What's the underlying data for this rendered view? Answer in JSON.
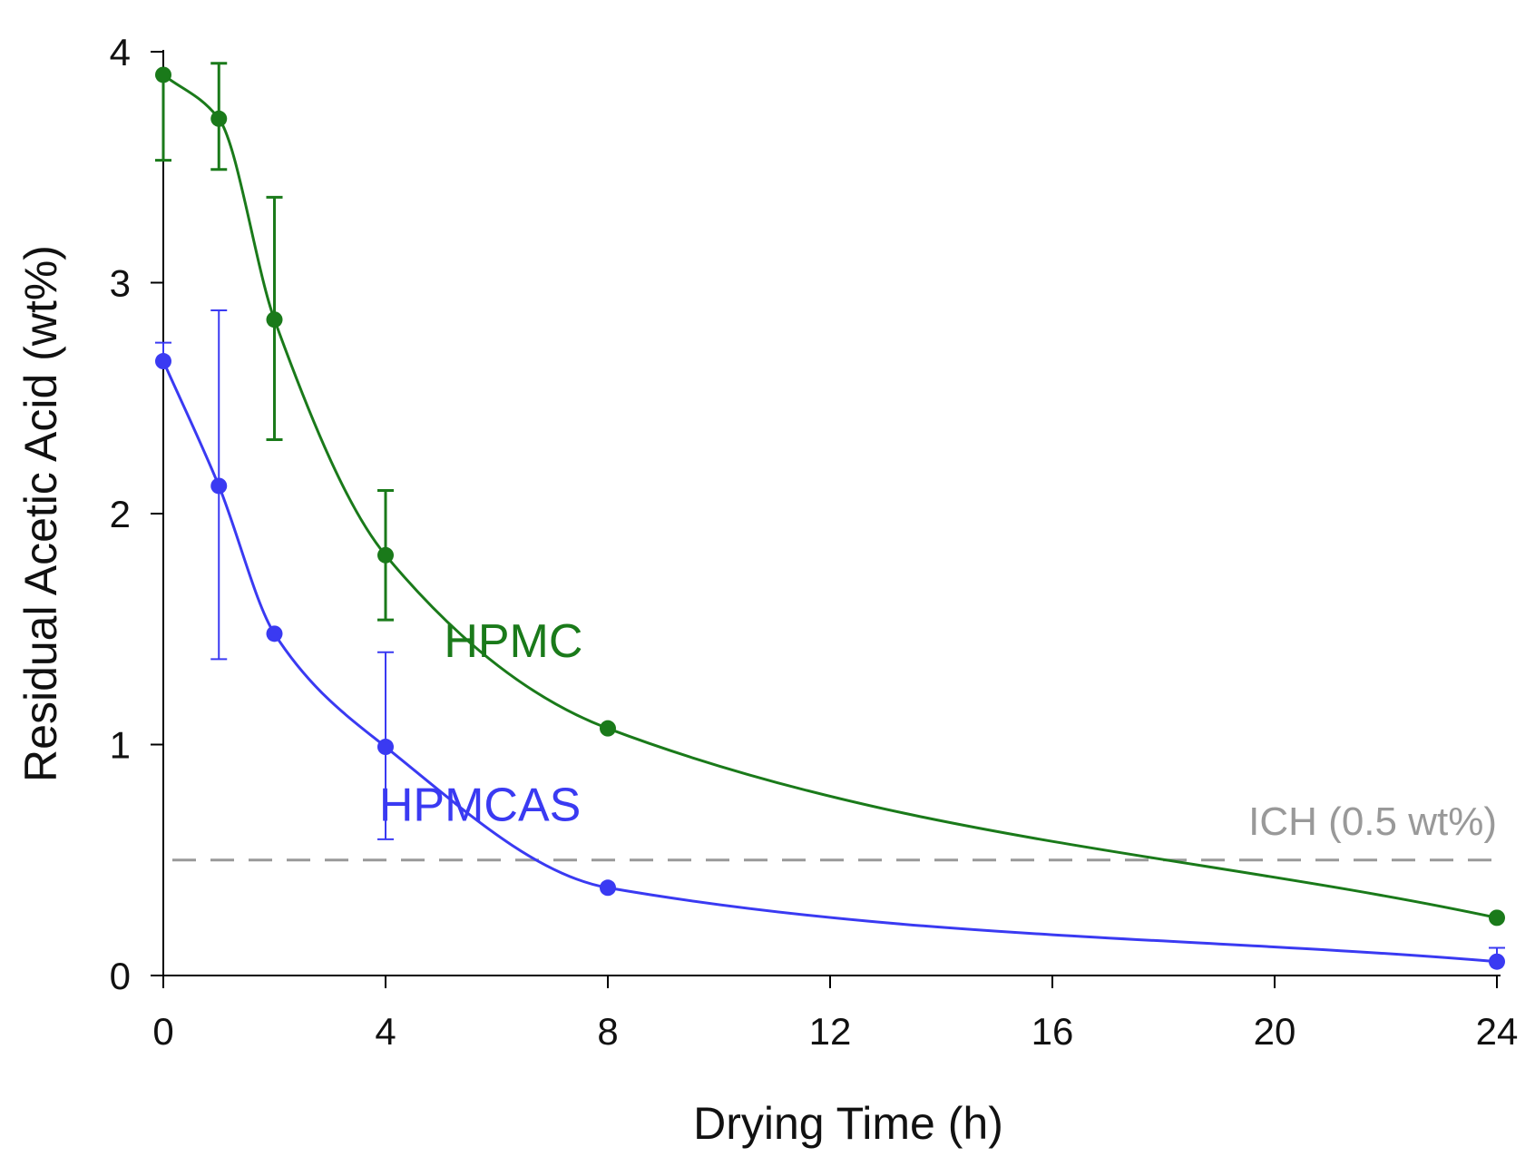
{
  "chart_data": {
    "type": "line",
    "title": "",
    "xlabel": "Drying Time (h)",
    "ylabel": "Residual Acetic Acid (wt%)",
    "xlim": [
      0,
      24
    ],
    "ylim": [
      0,
      4
    ],
    "xticks": [
      0,
      4,
      8,
      12,
      16,
      20,
      24
    ],
    "yticks": [
      0,
      1,
      2,
      3,
      4
    ],
    "grid": false,
    "series": [
      {
        "name": "HPMC",
        "color": "#1a7a1a",
        "x": [
          0,
          1,
          2,
          4,
          8,
          24
        ],
        "y": [
          3.9,
          3.71,
          2.84,
          1.82,
          1.07,
          0.25
        ],
        "err_low": [
          0.37,
          0.22,
          0.52,
          0.28,
          0.0,
          0.0
        ],
        "err_high": [
          0.0,
          0.24,
          0.53,
          0.28,
          0.0,
          0.0
        ],
        "label_position": {
          "x": 6.3,
          "y": 1.45
        }
      },
      {
        "name": "HPMCAS",
        "color": "#3a3af2",
        "x": [
          0,
          1,
          2,
          4,
          8,
          24
        ],
        "y": [
          2.66,
          2.12,
          1.48,
          0.99,
          0.38,
          0.06
        ],
        "err_low": [
          0.0,
          0.75,
          0.0,
          0.4,
          0.0,
          0.0
        ],
        "err_high": [
          0.08,
          0.76,
          0.0,
          0.41,
          0.0,
          0.06
        ],
        "label_position": {
          "x": 5.7,
          "y": 0.74
        }
      }
    ],
    "reference_line": {
      "y": 0.5,
      "label": "ICH (0.5 wt%)",
      "color": "#999999",
      "style": "dashed"
    }
  }
}
